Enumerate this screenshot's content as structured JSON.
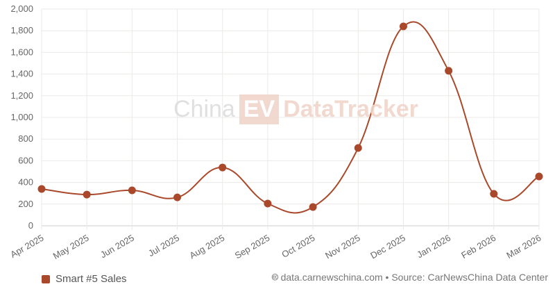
{
  "chart_data": {
    "type": "line",
    "categories": [
      "Apr 2025",
      "May 2025",
      "Jun 2025",
      "Jul 2025",
      "Aug 2025",
      "Sep 2025",
      "Oct 2025",
      "Nov 2025",
      "Dec 2025",
      "Jan 2026",
      "Feb 2026",
      "Mar 2026"
    ],
    "series": [
      {
        "name": "Smart #5 Sales",
        "values": [
          340,
          288,
          327,
          262,
          538,
          205,
          173,
          718,
          1840,
          1430,
          295,
          455
        ],
        "color": "#a9482a"
      }
    ],
    "ylim": [
      0,
      2000
    ],
    "yticks": [
      "0",
      "200",
      "400",
      "600",
      "800",
      "1,000",
      "1,200",
      "1,400",
      "1,600",
      "1,800",
      "2,000"
    ],
    "grid": true,
    "legend": "bottom-left"
  },
  "watermark": {
    "china": "China",
    "ev": "EV",
    "datatracker": "DataTracker"
  },
  "source": "data.carnewschina.com • Source: CarNewsChina Data Center",
  "source_icon": "cc-icon"
}
